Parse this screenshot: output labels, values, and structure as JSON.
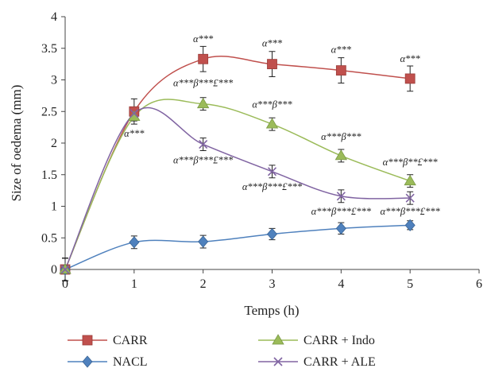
{
  "chart_data": {
    "type": "line",
    "title": "",
    "xlabel": "Temps (h)",
    "ylabel": "Size of oedema (mm)",
    "xlim": [
      0,
      6
    ],
    "ylim": [
      0,
      4
    ],
    "xticks": [
      "0",
      "1",
      "2",
      "3",
      "4",
      "5",
      "6"
    ],
    "yticks": [
      "0",
      "0.5",
      "1",
      "1.5",
      "2",
      "2.5",
      "3",
      "3.5",
      "4"
    ],
    "grid": false,
    "legend_position": "bottom",
    "x": [
      0,
      1,
      2,
      3,
      4,
      5
    ],
    "series": [
      {
        "name": "CARR",
        "color": "#c0504d",
        "marker": "square",
        "values": [
          0,
          2.5,
          3.33,
          3.25,
          3.15,
          3.02
        ],
        "errors": [
          0.18,
          0.2,
          0.2,
          0.2,
          0.2,
          0.2
        ]
      },
      {
        "name": "NACL",
        "color": "#4f81bd",
        "marker": "diamond",
        "values": [
          0,
          0.43,
          0.44,
          0.56,
          0.65,
          0.7
        ],
        "errors": [
          0.18,
          0.1,
          0.1,
          0.09,
          0.09,
          0.07
        ]
      },
      {
        "name": "CARR + Indo",
        "color": "#9bbb59",
        "marker": "triangle",
        "values": [
          0,
          2.42,
          2.62,
          2.3,
          1.8,
          1.4
        ],
        "errors": [
          0.18,
          0.07,
          0.1,
          0.1,
          0.1,
          0.1
        ]
      },
      {
        "name": "CARR + ALE",
        "color": "#8064a2",
        "marker": "x",
        "values": [
          0,
          2.47,
          1.98,
          1.55,
          1.16,
          1.13
        ],
        "errors": [
          0.18,
          0.07,
          0.1,
          0.1,
          0.1,
          0.1
        ]
      }
    ],
    "annotations": [
      {
        "text": "α***",
        "x": 2,
        "y": 3.6
      },
      {
        "text": "α***",
        "x": 3,
        "y": 3.53
      },
      {
        "text": "α***",
        "x": 4,
        "y": 3.43
      },
      {
        "text": "α***",
        "x": 5,
        "y": 3.28
      },
      {
        "text": "α***β***£***",
        "x": 2,
        "y": 2.9
      },
      {
        "text": "α***β***",
        "x": 3,
        "y": 2.56
      },
      {
        "text": "α***",
        "x": 1,
        "y": 2.1
      },
      {
        "text": "α***β***",
        "x": 4,
        "y": 2.05
      },
      {
        "text": "α***β***£***",
        "x": 2,
        "y": 1.68
      },
      {
        "text": "α***β**£***",
        "x": 5,
        "y": 1.65
      },
      {
        "text": "α***β***£***",
        "x": 3,
        "y": 1.26
      },
      {
        "text": "α***β***£***",
        "x": 4,
        "y": 0.87
      },
      {
        "text": "α***β***£***",
        "x": 5,
        "y": 0.87
      }
    ]
  }
}
